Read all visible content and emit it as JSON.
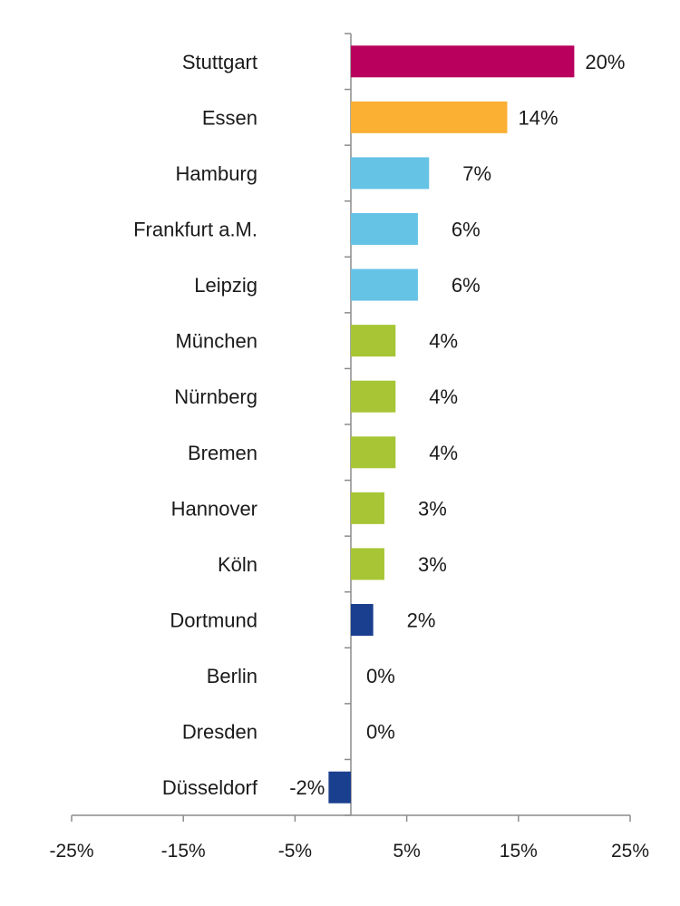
{
  "chart_data": {
    "type": "bar",
    "orientation": "horizontal",
    "title": "",
    "xlabel": "",
    "ylabel": "",
    "xlim": [
      -25,
      25
    ],
    "xticks": [
      -25,
      -15,
      -5,
      5,
      15,
      25
    ],
    "xtick_labels": [
      "-25%",
      "-15%",
      "-5%",
      "5%",
      "15%",
      "25%"
    ],
    "grid": false,
    "legend": "none",
    "categories": [
      "Stuttgart",
      "Essen",
      "Hamburg",
      "Frankfurt a.M.",
      "Leipzig",
      "München",
      "Nürnberg",
      "Bremen",
      "Hannover",
      "Köln",
      "Dortmund",
      "Berlin",
      "Dresden",
      "Düsseldorf"
    ],
    "values": [
      20,
      14,
      7,
      6,
      6,
      4,
      4,
      4,
      3,
      3,
      2,
      0,
      0,
      -2
    ],
    "value_labels": [
      "20%",
      "14%",
      "7%",
      "6%",
      "6%",
      "4%",
      "4%",
      "4%",
      "3%",
      "3%",
      "2%",
      "0%",
      "0%",
      "-2%"
    ],
    "bar_colors": [
      "#b8005c",
      "#fbb034",
      "#65c3e6",
      "#65c3e6",
      "#65c3e6",
      "#a7c535",
      "#a7c535",
      "#a7c535",
      "#a7c535",
      "#a7c535",
      "#1b3f8f",
      "#1b3f8f",
      "#1b3f8f",
      "#1b3f8f"
    ]
  }
}
